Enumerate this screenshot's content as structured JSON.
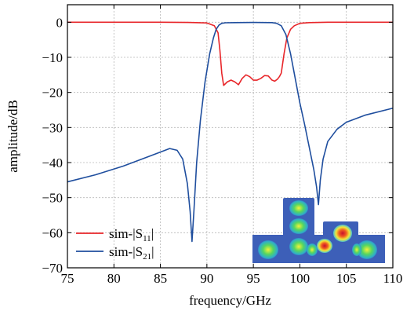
{
  "chart_data": {
    "type": "line",
    "xlabel": "frequency/GHz",
    "ylabel": "amplitude/dB",
    "xlim": [
      75,
      110
    ],
    "ylim": [
      -70,
      5
    ],
    "xticks": [
      75,
      80,
      85,
      90,
      95,
      100,
      105,
      110
    ],
    "yticks": [
      0,
      -10,
      -20,
      -30,
      -40,
      -50,
      -60,
      -70
    ],
    "xtick_labels": [
      "75",
      "80",
      "85",
      "90",
      "95",
      "100",
      "105",
      "110"
    ],
    "ytick_labels": [
      "0",
      "−10",
      "−20",
      "−30",
      "−40",
      "−50",
      "−60",
      "−70"
    ],
    "grid": true,
    "grid_style": "dotted",
    "legend_position": "bottom-left",
    "inset": "field-distribution-image",
    "series": [
      {
        "name_prefix": "sim-|S",
        "name_sub": "11",
        "name_suffix": "|",
        "color": "#e8262a",
        "x": [
          75,
          80,
          85,
          88,
          90,
          90.8,
          91.2,
          91.4,
          91.6,
          91.8,
          92.2,
          92.6,
          93,
          93.4,
          93.8,
          94.2,
          94.6,
          95,
          95.4,
          95.8,
          96.2,
          96.6,
          97,
          97.3,
          97.6,
          97.8,
          98.0,
          98.3,
          98.6,
          99,
          99.4,
          100,
          101,
          103,
          105,
          110
        ],
        "y": [
          0,
          0,
          0,
          -0.05,
          -0.2,
          -1.0,
          -3.0,
          -8.0,
          -14.5,
          -18.0,
          -17.0,
          -16.5,
          -17.0,
          -17.8,
          -16.0,
          -15.0,
          -15.5,
          -16.5,
          -16.5,
          -16.0,
          -15.2,
          -15.3,
          -16.5,
          -16.8,
          -16.2,
          -15.5,
          -14.5,
          -9.0,
          -4.5,
          -2.0,
          -1.0,
          -0.3,
          -0.1,
          0,
          0,
          0
        ]
      },
      {
        "name_prefix": "sim-|S",
        "name_sub": "21",
        "name_suffix": "|",
        "color": "#1f4e9e",
        "x": [
          75,
          78,
          81,
          84,
          86,
          86.8,
          87.4,
          87.9,
          88.2,
          88.4,
          88.6,
          88.9,
          89.3,
          89.8,
          90.3,
          90.7,
          91.0,
          91.3,
          91.6,
          92,
          93,
          95,
          97,
          97.5,
          98.0,
          98.5,
          99.0,
          99.5,
          100.0,
          100.5,
          101.0,
          101.5,
          101.8,
          102.0,
          102.2,
          102.5,
          103,
          104,
          105,
          107,
          110
        ],
        "y": [
          -45.5,
          -43.5,
          -41,
          -38,
          -36,
          -36.5,
          -39,
          -46,
          -54,
          -62.5,
          -54,
          -40,
          -28,
          -17,
          -9,
          -4.5,
          -2,
          -0.8,
          -0.3,
          -0.15,
          -0.1,
          -0.05,
          -0.1,
          -0.3,
          -1.0,
          -3.5,
          -9,
          -16,
          -23,
          -29,
          -35.5,
          -42,
          -47,
          -52,
          -45,
          -39,
          -34,
          -30.5,
          -28.5,
          -26.5,
          -24.5
        ]
      }
    ]
  }
}
